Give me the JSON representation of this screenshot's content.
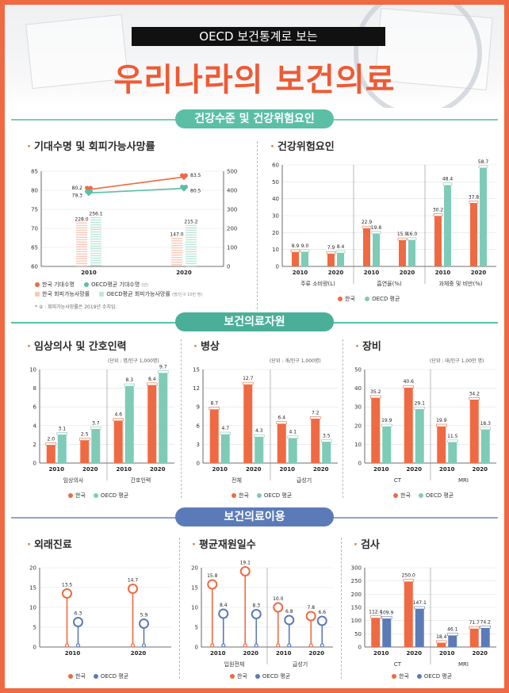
{
  "header": {
    "subtitle": "OECD 보건통계로 보는",
    "title": "우리나라의 보건의료"
  },
  "sections": {
    "s1": "건강수준 및 건강위험요인",
    "s2": "보건의료자원",
    "s3": "보건의료이용"
  },
  "colors": {
    "korea": "#ef6a42",
    "oecd": "#7ecbb8",
    "oecd_blue": "#5b7bb8",
    "accent": "#ef5a34"
  },
  "legends": {
    "korea": "한국",
    "oecd": "OECD 평균",
    "life_kr": "한국 기대수명",
    "life_oecd": "OECD평균 기대수명",
    "life_oecd_note": "(년)",
    "avoid_kr": "한국 회피가능사망률",
    "avoid_oecd": "OECD평균 회피가능사망률",
    "avoid_note": "(명/인구 10만 명)",
    "footnote": "* ② : 회피가능사망률은 2019년 수치임."
  },
  "chart_data": [
    {
      "id": "life",
      "type": "line",
      "title": "기대수명 및 회피가능사망률",
      "categories": [
        "2010",
        "2020"
      ],
      "ylim": [
        60,
        85
      ],
      "yticks": [
        "60",
        "65",
        "70",
        "75",
        "80",
        "85"
      ],
      "y2lim": [
        0,
        500
      ],
      "y2ticks": [
        "0",
        "100",
        "200",
        "300",
        "400",
        "500"
      ],
      "series": [
        {
          "name": "한국 기대수명",
          "type": "line",
          "axis": "left",
          "values": [
            80.2,
            83.5
          ],
          "labels": [
            "80.2",
            "83.5"
          ]
        },
        {
          "name": "OECD평균 기대수명",
          "type": "line",
          "axis": "left",
          "values": [
            79.3,
            80.5
          ],
          "labels": [
            "79.3",
            "80.5"
          ]
        },
        {
          "name": "한국 회피가능사망률",
          "type": "bar",
          "axis": "right",
          "values": [
            228.0,
            147.0
          ],
          "labels": [
            "228.0",
            "147.0"
          ]
        },
        {
          "name": "OECD평균 회피가능사망률",
          "type": "bar",
          "axis": "right",
          "values": [
            256.1,
            215.2
          ],
          "labels": [
            "256.1",
            "215.2"
          ]
        }
      ]
    },
    {
      "id": "risk",
      "type": "bar",
      "title": "건강위험요인",
      "ylim": [
        0,
        60
      ],
      "yticks": [
        "0",
        "10",
        "20",
        "30",
        "40",
        "50",
        "60"
      ],
      "groups": [
        {
          "name": "주류 소비량(L)",
          "categories": [
            "2010",
            "2020"
          ],
          "korea": [
            8.9,
            7.9
          ],
          "oecd": [
            9.0,
            8.4
          ],
          "labels_kr": [
            "8.9",
            "7.9"
          ],
          "labels_oecd": [
            "9.0",
            "8.4"
          ]
        },
        {
          "name": "흡연율(%)",
          "categories": [
            "2010",
            "2020"
          ],
          "korea": [
            22.9,
            15.9
          ],
          "oecd": [
            19.8,
            16.0
          ],
          "labels_kr": [
            "22.9",
            "15.9"
          ],
          "labels_oecd": [
            "19.8",
            "16.0"
          ]
        },
        {
          "name": "과체중 및 비만(%)",
          "categories": [
            "2010",
            "2020"
          ],
          "korea": [
            30.2,
            37.8
          ],
          "oecd": [
            48.4,
            58.7
          ],
          "labels_kr": [
            "30.2",
            "37.8"
          ],
          "labels_oecd": [
            "48.4",
            "58.7"
          ]
        }
      ]
    },
    {
      "id": "doctors",
      "type": "bar",
      "title": "임상의사 및 간호인력",
      "unit": "(단위 : 명/인구 1,000명)",
      "ylim": [
        0,
        10
      ],
      "yticks": [
        "0",
        "2",
        "4",
        "6",
        "8",
        "10"
      ],
      "groups": [
        {
          "name": "임상의사",
          "categories": [
            "2010",
            "2020"
          ],
          "korea": [
            2.0,
            2.5
          ],
          "oecd": [
            3.1,
            3.7
          ],
          "labels_kr": [
            "2.0",
            "2.5"
          ],
          "labels_oecd": [
            "3.1",
            "3.7"
          ]
        },
        {
          "name": "간호인력",
          "categories": [
            "2010",
            "2020"
          ],
          "korea": [
            4.6,
            8.4
          ],
          "oecd": [
            8.3,
            9.7
          ],
          "labels_kr": [
            "4.6",
            "8.4"
          ],
          "labels_oecd": [
            "8.3",
            "9.7"
          ]
        }
      ]
    },
    {
      "id": "beds",
      "type": "bar",
      "title": "병상",
      "unit": "(단위 : 개/인구 1,000명)",
      "ylim": [
        0,
        15
      ],
      "yticks": [
        "0",
        "3",
        "6",
        "9",
        "12",
        "15"
      ],
      "groups": [
        {
          "name": "전체",
          "categories": [
            "2010",
            "2020"
          ],
          "korea": [
            8.7,
            12.7
          ],
          "oecd": [
            4.7,
            4.3
          ],
          "labels_kr": [
            "8.7",
            "12.7"
          ],
          "labels_oecd": [
            "4.7",
            "4.3"
          ]
        },
        {
          "name": "급성기",
          "categories": [
            "2010",
            "2020"
          ],
          "korea": [
            6.4,
            7.2
          ],
          "oecd": [
            4.1,
            3.5
          ],
          "labels_kr": [
            "6.4",
            "7.2"
          ],
          "labels_oecd": [
            "4.1",
            "3.5"
          ]
        }
      ]
    },
    {
      "id": "equip",
      "type": "bar",
      "title": "장비",
      "unit": "(단위 : 대/인구 1,00만 명)",
      "ylim": [
        0,
        50
      ],
      "yticks": [
        "0",
        "10",
        "20",
        "30",
        "40",
        "50"
      ],
      "groups": [
        {
          "name": "CT",
          "categories": [
            "2010",
            "2020"
          ],
          "korea": [
            35.2,
            40.6
          ],
          "oecd": [
            19.9,
            29.1
          ],
          "labels_kr": [
            "35.2",
            "40.6"
          ],
          "labels_oecd": [
            "19.9",
            "29.1"
          ]
        },
        {
          "name": "MRI",
          "categories": [
            "2010",
            "2020"
          ],
          "korea": [
            19.9,
            34.2
          ],
          "oecd": [
            11.5,
            18.3
          ],
          "labels_kr": [
            "19.9",
            "34.2"
          ],
          "labels_oecd": [
            "11.5",
            "18.3"
          ]
        }
      ]
    },
    {
      "id": "outpatient",
      "type": "bar",
      "title": "외래진료",
      "ylim": [
        0,
        20
      ],
      "yticks": [
        "0",
        "5",
        "10",
        "15",
        "20"
      ],
      "groups": [
        {
          "name": "",
          "categories": [
            "2010",
            "2020"
          ],
          "korea": [
            13.5,
            14.7
          ],
          "oecd": [
            6.3,
            5.9
          ],
          "labels_kr": [
            "13.5",
            "14.7"
          ],
          "labels_oecd": [
            "6.3",
            "5.9"
          ]
        }
      ]
    },
    {
      "id": "stay",
      "type": "bar",
      "title": "평균재원일수",
      "ylim": [
        0,
        20
      ],
      "yticks": [
        "0",
        "5",
        "10",
        "15",
        "20"
      ],
      "groups": [
        {
          "name": "입원전체",
          "categories": [
            "2010",
            "2020"
          ],
          "korea": [
            15.8,
            19.1
          ],
          "oecd": [
            8.4,
            8.3
          ],
          "labels_kr": [
            "15.8",
            "19.1"
          ],
          "labels_oecd": [
            "8.4",
            "8.3"
          ]
        },
        {
          "name": "급성기",
          "categories": [
            "2010",
            "2020"
          ],
          "korea": [
            10.0,
            7.8
          ],
          "oecd": [
            6.8,
            6.6
          ],
          "labels_kr": [
            "10.0",
            "7.8"
          ],
          "labels_oecd": [
            "6.8",
            "6.6"
          ]
        }
      ]
    },
    {
      "id": "exam",
      "type": "bar",
      "title": "검사",
      "ylim": [
        0,
        300
      ],
      "yticks": [
        "0",
        "50",
        "100",
        "150",
        "200",
        "250",
        "300"
      ],
      "groups": [
        {
          "name": "CT",
          "categories": [
            "2010",
            "2020"
          ],
          "korea": [
            112.4,
            250.0
          ],
          "oecd": [
            109.9,
            147.1
          ],
          "labels_kr": [
            "112.4",
            "250.0"
          ],
          "labels_oecd": [
            "109.9",
            "147.1"
          ]
        },
        {
          "name": "MRI",
          "categories": [
            "2010",
            "2020"
          ],
          "korea": [
            18.4,
            71.7
          ],
          "oecd": [
            46.1,
            74.2
          ],
          "labels_kr": [
            "18.4",
            "71.7"
          ],
          "labels_oecd": [
            "46.1",
            "74.2"
          ]
        }
      ]
    }
  ]
}
